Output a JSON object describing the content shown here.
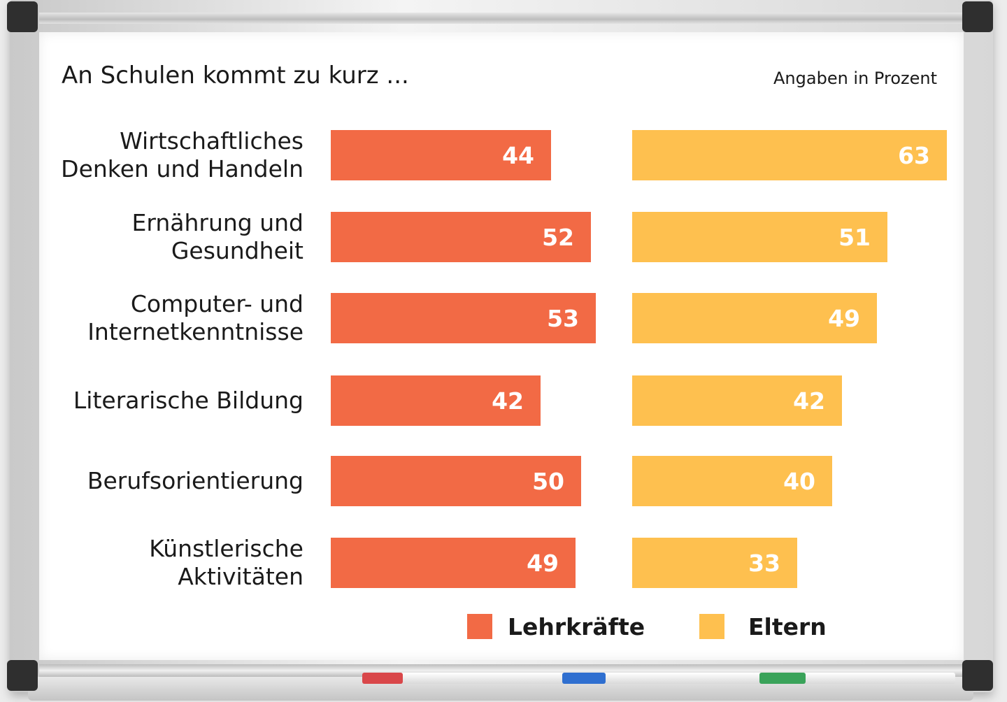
{
  "chart_data": {
    "type": "bar",
    "orientation": "horizontal",
    "title": "An Schulen kommt zu kurz ...",
    "unit_note": "Angaben in Prozent",
    "categories": [
      "Wirtschaftliches\nDenken und Handeln",
      "Ernährung und\nGesundheit",
      "Computer- und\nInternetkenntnisse",
      "Literarische Bildung",
      "Berufsorientierung",
      "Künstlerische \nAktivitäten"
    ],
    "series": [
      {
        "name": "Lehrkräfte",
        "color": "#f26a45",
        "values": [
          44,
          52,
          53,
          42,
          50,
          49
        ]
      },
      {
        "name": "Eltern",
        "color": "#fec04f",
        "values": [
          63,
          51,
          49,
          42,
          40,
          33
        ]
      }
    ],
    "value_labels": [
      [
        "44",
        "52",
        "53",
        "42",
        "50",
        "49"
      ],
      [
        "63",
        "51",
        "49",
        "42",
        "40",
        "33"
      ]
    ],
    "legend_position": "bottom",
    "grid": false
  }
}
